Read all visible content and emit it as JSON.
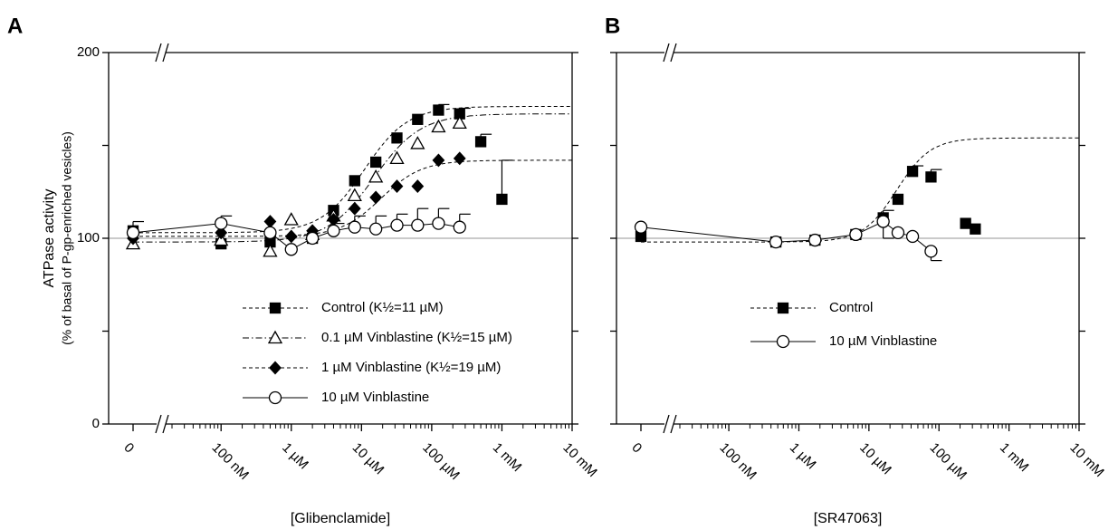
{
  "chart_data": [
    {
      "type": "scatter",
      "panel_label": "A",
      "x_label": "[Glibenclamide]",
      "y_label": [
        "ATPase activity",
        "(% of basal of P-gp-enriched vesicles)"
      ],
      "xscale": "log",
      "x_break": true,
      "xlim": [
        20,
        10000000
      ],
      "ylim": [
        0,
        200
      ],
      "xticks": [
        {
          "value": 0,
          "label": "0"
        },
        {
          "value": 100,
          "label": "100 nM"
        },
        {
          "value": 1000,
          "label": "1 µM"
        },
        {
          "value": 10000,
          "label": "10 µM"
        },
        {
          "value": 100000,
          "label": "100 µM"
        },
        {
          "value": 1000000,
          "label": "1 mM"
        },
        {
          "value": 10000000,
          "label": "10 mM"
        }
      ],
      "yticks": [
        0,
        100,
        200
      ],
      "yticks_minor": [
        50,
        150
      ],
      "hline": 100,
      "legend": "lower center",
      "x": [
        0,
        100,
        500,
        1000,
        2000,
        4000,
        8000,
        16000,
        32000,
        63000,
        125000,
        250000,
        500000,
        1000000
      ],
      "series": [
        {
          "name": "Control (K½=11 µM)",
          "marker": "square",
          "color": "#000000",
          "line": "dashed",
          "values": [
            104,
            97,
            98,
            null,
            100,
            115,
            131,
            141,
            154,
            164,
            169,
            167,
            152,
            121
          ],
          "errors": [
            null,
            null,
            null,
            null,
            null,
            null,
            null,
            null,
            null,
            null,
            3,
            3,
            4,
            21
          ],
          "error_direction": "up",
          "fit": {
            "bottom": 103,
            "top": 171,
            "k": 11000,
            "n": 1.4
          }
        },
        {
          "name": "0.1 µM Vinblastine (K½=15 µM)",
          "marker": "triangle",
          "color": "#ffffff",
          "line": "dashdot",
          "values": [
            97,
            99,
            93,
            110,
            102,
            112,
            123,
            133,
            143,
            151,
            160,
            162,
            null,
            null
          ],
          "fit": {
            "bottom": 98,
            "top": 167,
            "k": 15000,
            "n": 1.3
          }
        },
        {
          "name": "1 µM Vinblastine (K½=19 µM)",
          "marker": "diamond",
          "color": "#000000",
          "line": "dashed",
          "values": [
            100,
            103,
            109,
            101,
            104,
            110,
            116,
            122,
            128,
            128,
            142,
            143,
            null,
            null
          ],
          "fit": {
            "bottom": 101,
            "top": 142,
            "k": 19000,
            "n": 1.5
          }
        },
        {
          "name": "10 µM Vinblastine",
          "marker": "circle",
          "color": "#ffffff",
          "line": "solid",
          "connect": true,
          "values": [
            103,
            108,
            103,
            94,
            100,
            104,
            106,
            105,
            107,
            107,
            108,
            106,
            null,
            null
          ],
          "errors": [
            6,
            4,
            null,
            null,
            null,
            4,
            6,
            7,
            6,
            9,
            8,
            7,
            null,
            null
          ],
          "error_direction": "up"
        }
      ]
    },
    {
      "type": "scatter",
      "panel_label": "B",
      "x_label": "[SR47063]",
      "xscale": "log",
      "x_break": true,
      "xlim": [
        20,
        10000000
      ],
      "ylim": [
        0,
        200
      ],
      "xticks": [
        {
          "value": 0,
          "label": "0"
        },
        {
          "value": 100,
          "label": "100 nM"
        },
        {
          "value": 1000,
          "label": "1 µM"
        },
        {
          "value": 10000,
          "label": "10 µM"
        },
        {
          "value": 100000,
          "label": "100 µM"
        },
        {
          "value": 1000000,
          "label": "1 mM"
        },
        {
          "value": 10000000,
          "label": "10 mM"
        }
      ],
      "yticks_minor": [
        0,
        50,
        100,
        150,
        200
      ],
      "hline": 100,
      "legend": "lower center",
      "x": [
        0,
        470,
        1700,
        6500,
        16000,
        26000,
        42000,
        77000,
        240000,
        330000
      ],
      "series": [
        {
          "name": "Control",
          "marker": "square",
          "color": "#000000",
          "line": "dashed",
          "values": [
            101,
            98,
            99,
            102,
            111,
            121,
            136,
            133,
            108,
            105
          ],
          "errors": [
            null,
            null,
            null,
            null,
            4,
            null,
            3,
            4,
            null,
            null
          ],
          "error_direction": "up",
          "fit": {
            "bottom": 98,
            "top": 154,
            "k": 25000,
            "n": 1.8
          }
        },
        {
          "name": "10 µM Vinblastine",
          "marker": "circle",
          "color": "#ffffff",
          "line": "solid",
          "connect": true,
          "values": [
            106,
            98,
            99,
            102,
            109,
            103,
            101,
            93,
            null,
            null
          ],
          "errors": [
            null,
            null,
            null,
            null,
            9,
            null,
            null,
            5,
            null,
            null
          ],
          "error_direction": "down"
        }
      ]
    }
  ]
}
